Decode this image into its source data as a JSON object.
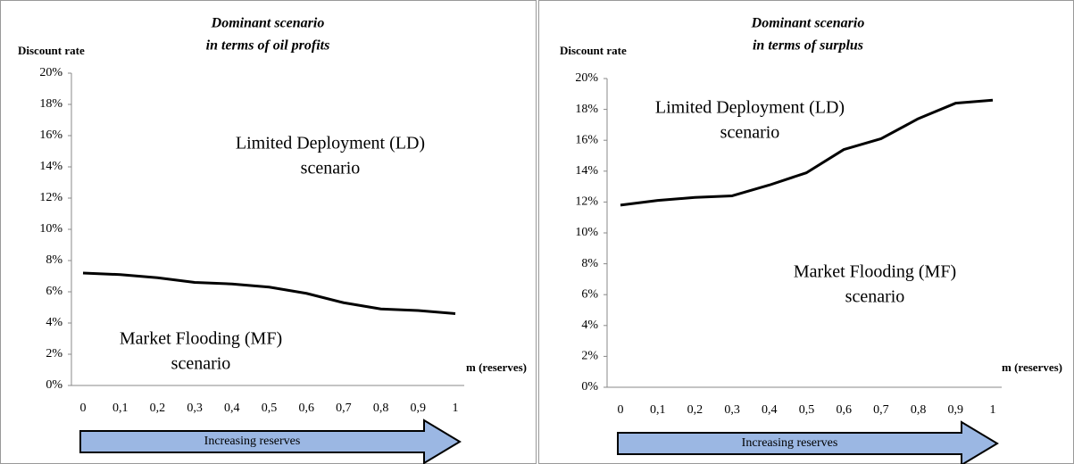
{
  "chart_data": [
    {
      "type": "line",
      "title": [
        "Dominant scenario",
        "in terms of oil profits"
      ],
      "y_label": "Discount rate",
      "x_label": "m (reserves)",
      "x": [
        0,
        0.1,
        0.2,
        0.3,
        0.4,
        0.5,
        0.6,
        0.7,
        0.8,
        0.9,
        1
      ],
      "series": [
        {
          "color": "#000000",
          "values": [
            7.2,
            7.1,
            6.9,
            6.6,
            6.5,
            6.3,
            5.9,
            5.3,
            4.9,
            4.8,
            4.6
          ]
        }
      ],
      "xlim": [
        0,
        1
      ],
      "xticks": [
        {
          "value": 0,
          "label": "0"
        },
        {
          "value": 0.1,
          "label": "0,1"
        },
        {
          "value": 0.2,
          "label": "0,2"
        },
        {
          "value": 0.3,
          "label": "0,3"
        },
        {
          "value": 0.4,
          "label": "0,4"
        },
        {
          "value": 0.5,
          "label": "0,5"
        },
        {
          "value": 0.6,
          "label": "0,6"
        },
        {
          "value": 0.7,
          "label": "0,7"
        },
        {
          "value": 0.8,
          "label": "0,8"
        },
        {
          "value": 0.9,
          "label": "0,9"
        },
        {
          "value": 1,
          "label": "1"
        }
      ],
      "ylim": [
        0,
        20
      ],
      "yticks": [
        {
          "value": 0,
          "label": "0%"
        },
        {
          "value": 2,
          "label": "2%"
        },
        {
          "value": 4,
          "label": "4%"
        },
        {
          "value": 6,
          "label": "6%"
        },
        {
          "value": 8,
          "label": "8%"
        },
        {
          "value": 10,
          "label": "10%"
        },
        {
          "value": 12,
          "label": "12%"
        },
        {
          "value": 14,
          "label": "14%"
        },
        {
          "value": 16,
          "label": "16%"
        },
        {
          "value": 18,
          "label": "18%"
        },
        {
          "value": 20,
          "label": "20%"
        }
      ],
      "annotations": [
        [
          "Limited Deployment (LD)",
          "scenario"
        ],
        [
          "Market Flooding (MF)",
          "scenario"
        ]
      ],
      "arrow_label": "Increasing reserves"
    },
    {
      "type": "line",
      "title": [
        "Dominant scenario",
        "in terms of surplus"
      ],
      "y_label": "Discount rate",
      "x_label": "m (reserves)",
      "x": [
        0,
        0.1,
        0.2,
        0.3,
        0.4,
        0.5,
        0.6,
        0.7,
        0.8,
        0.9,
        1
      ],
      "series": [
        {
          "color": "#000000",
          "values": [
            11.8,
            12.1,
            12.3,
            12.4,
            13.1,
            13.9,
            15.4,
            16.1,
            17.4,
            18.4,
            18.6
          ]
        }
      ],
      "xlim": [
        0,
        1
      ],
      "xticks": [
        {
          "value": 0,
          "label": "0"
        },
        {
          "value": 0.1,
          "label": "0,1"
        },
        {
          "value": 0.2,
          "label": "0,2"
        },
        {
          "value": 0.3,
          "label": "0,3"
        },
        {
          "value": 0.4,
          "label": "0,4"
        },
        {
          "value": 0.5,
          "label": "0,5"
        },
        {
          "value": 0.6,
          "label": "0,6"
        },
        {
          "value": 0.7,
          "label": "0,7"
        },
        {
          "value": 0.8,
          "label": "0,8"
        },
        {
          "value": 0.9,
          "label": "0,9"
        },
        {
          "value": 1,
          "label": "1"
        }
      ],
      "ylim": [
        0,
        20
      ],
      "yticks": [
        {
          "value": 0,
          "label": "0%"
        },
        {
          "value": 2,
          "label": "2%"
        },
        {
          "value": 4,
          "label": "4%"
        },
        {
          "value": 6,
          "label": "6%"
        },
        {
          "value": 8,
          "label": "8%"
        },
        {
          "value": 10,
          "label": "10%"
        },
        {
          "value": 12,
          "label": "12%"
        },
        {
          "value": 14,
          "label": "14%"
        },
        {
          "value": 16,
          "label": "16%"
        },
        {
          "value": 18,
          "label": "18%"
        },
        {
          "value": 20,
          "label": "20%"
        }
      ],
      "annotations": [
        [
          "Limited Deployment (LD)",
          "scenario"
        ],
        [
          "Market Flooding (MF)",
          "scenario"
        ]
      ],
      "arrow_label": "Increasing reserves"
    }
  ]
}
